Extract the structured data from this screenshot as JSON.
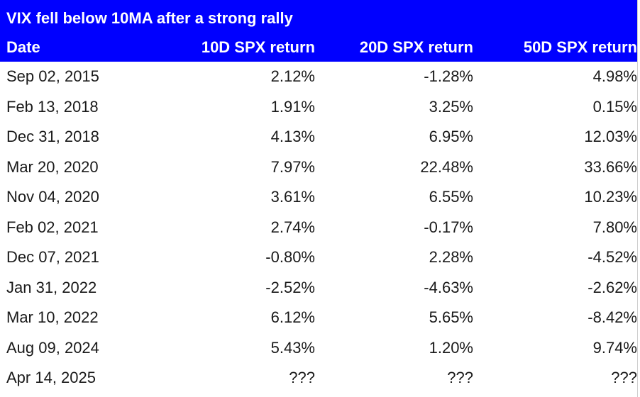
{
  "chart_data": {
    "type": "table",
    "title": "VIX fell below 10MA after a strong rally",
    "columns": [
      "Date",
      "10D SPX return",
      "20D SPX return",
      "50D SPX return"
    ],
    "rows": [
      [
        "Sep 02, 2015",
        "2.12%",
        "-1.28%",
        "4.98%"
      ],
      [
        "Feb 13, 2018",
        "1.91%",
        "3.25%",
        "0.15%"
      ],
      [
        "Dec 31, 2018",
        "4.13%",
        "6.95%",
        "12.03%"
      ],
      [
        "Mar 20, 2020",
        "7.97%",
        "22.48%",
        "33.66%"
      ],
      [
        "Nov 04, 2020",
        "3.61%",
        "6.55%",
        "10.23%"
      ],
      [
        "Feb 02, 2021",
        "2.74%",
        "-0.17%",
        "7.80%"
      ],
      [
        "Dec 07, 2021",
        "-0.80%",
        "2.28%",
        "-4.52%"
      ],
      [
        "Jan 31, 2022",
        "-2.52%",
        "-4.63%",
        "-2.62%"
      ],
      [
        "Mar 10, 2022",
        "6.12%",
        "5.65%",
        "-8.42%"
      ],
      [
        "Aug 09, 2024",
        "5.43%",
        "1.20%",
        "9.74%"
      ],
      [
        "Apr 14, 2025",
        "???",
        "???",
        "???"
      ]
    ],
    "colors": {
      "header_background": "#0000ff",
      "header_text": "#ffffff",
      "body_text": "#1a1a1a"
    }
  }
}
